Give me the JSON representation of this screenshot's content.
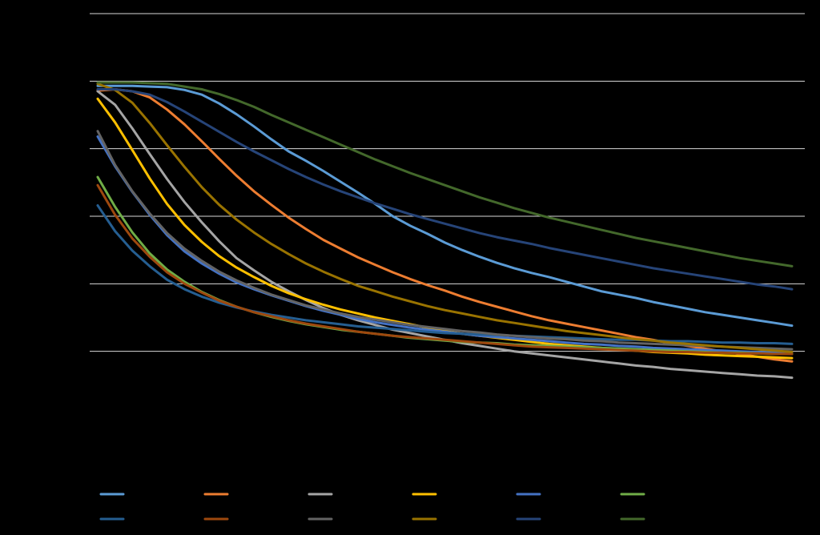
{
  "chart_data": {
    "type": "line",
    "title": "",
    "xlabel": "",
    "ylabel": "",
    "xlim": [
      0,
      20
    ],
    "ylim": [
      0,
      600
    ],
    "yticks": [
      100,
      200,
      300,
      400,
      500,
      600
    ],
    "grid": true,
    "legend": "bottom",
    "background": "#000000",
    "gridline_color": "#d9d9d9",
    "x": [
      0,
      0.5,
      1,
      1.5,
      2,
      2.5,
      3,
      3.5,
      4,
      4.5,
      5,
      5.5,
      6,
      6.5,
      7,
      7.5,
      8,
      8.5,
      9,
      9.5,
      10,
      10.5,
      11,
      11.5,
      12,
      12.5,
      13,
      13.5,
      14,
      14.5,
      15,
      15.5,
      16,
      16.5,
      17,
      17.5,
      18,
      18.5,
      19,
      19.5,
      20
    ],
    "series": [
      {
        "color": "#5b9bd5",
        "values": [
          493,
          493,
          493,
          492,
          491,
          487,
          480,
          467,
          451,
          433,
          414,
          396,
          382,
          367,
          351,
          335,
          318,
          300,
          286,
          274,
          261,
          250,
          240,
          231,
          223,
          216,
          210,
          203,
          196,
          189,
          184,
          179,
          173,
          168,
          163,
          158,
          154,
          150,
          146,
          142,
          138
        ]
      },
      {
        "color": "#ed7d31",
        "values": [
          486,
          488,
          485,
          476,
          458,
          436,
          411,
          385,
          360,
          337,
          317,
          298,
          281,
          265,
          252,
          239,
          228,
          217,
          207,
          198,
          190,
          181,
          173,
          166,
          159,
          152,
          146,
          141,
          136,
          131,
          126,
          121,
          117,
          112,
          108,
          104,
          100,
          96,
          92,
          88,
          85
        ]
      },
      {
        "color": "#a5a5a5",
        "values": [
          485,
          465,
          430,
          392,
          355,
          321,
          291,
          263,
          238,
          220,
          203,
          189,
          176,
          164,
          154,
          146,
          139,
          132,
          127,
          122,
          117,
          112,
          108,
          104,
          100,
          97,
          94,
          91,
          88,
          85,
          82,
          79,
          77,
          74,
          72,
          70,
          68,
          66,
          64,
          63,
          61
        ]
      },
      {
        "color": "#ffc000",
        "values": [
          474,
          439,
          398,
          356,
          318,
          287,
          262,
          241,
          224,
          210,
          197,
          186,
          177,
          169,
          162,
          156,
          150,
          145,
          140,
          135,
          130,
          126,
          123,
          120,
          117,
          114,
          111,
          109,
          107,
          105,
          103,
          101,
          99,
          98,
          97,
          95,
          94,
          93,
          92,
          91,
          90
        ]
      },
      {
        "color": "#4472c4",
        "values": [
          418,
          374,
          336,
          302,
          272,
          248,
          230,
          215,
          202,
          192,
          183,
          175,
          167,
          160,
          154,
          148,
          143,
          139,
          135,
          132,
          129,
          126,
          123,
          121,
          119,
          117,
          115,
          113,
          111,
          110,
          108,
          107,
          105,
          104,
          103,
          102,
          101,
          100,
          99,
          98,
          97
        ]
      },
      {
        "color": "#70ad47",
        "values": [
          358,
          314,
          276,
          245,
          221,
          203,
          188,
          176,
          166,
          158,
          151,
          145,
          140,
          136,
          132,
          129,
          126,
          123,
          120,
          118,
          116,
          114,
          113,
          112,
          110,
          109,
          108,
          107,
          106,
          105,
          104,
          103,
          102,
          101,
          100,
          99,
          98,
          98,
          97,
          96,
          96
        ]
      },
      {
        "color": "#255e91",
        "values": [
          316,
          278,
          249,
          226,
          206,
          192,
          181,
          172,
          165,
          159,
          154,
          150,
          146,
          143,
          140,
          137,
          135,
          133,
          131,
          129,
          127,
          126,
          125,
          124,
          123,
          122,
          121,
          120,
          119,
          118,
          117,
          117,
          116,
          115,
          115,
          114,
          113,
          113,
          112,
          112,
          111
        ]
      },
      {
        "color": "#9e480e",
        "values": [
          346,
          302,
          267,
          240,
          217,
          200,
          187,
          175,
          166,
          158,
          152,
          146,
          141,
          137,
          133,
          129,
          126,
          123,
          121,
          119,
          117,
          115,
          113,
          111,
          109,
          107,
          106,
          105,
          104,
          103,
          102,
          101,
          100,
          99,
          99,
          98,
          98,
          97,
          97,
          96,
          96
        ]
      },
      {
        "color": "#636363",
        "values": [
          426,
          376,
          337,
          304,
          275,
          252,
          234,
          218,
          205,
          194,
          184,
          176,
          168,
          162,
          156,
          151,
          147,
          143,
          139,
          136,
          133,
          130,
          128,
          125,
          123,
          121,
          119,
          118,
          116,
          115,
          113,
          112,
          111,
          110,
          109,
          108,
          107,
          106,
          105,
          104,
          103
        ]
      },
      {
        "color": "#997300",
        "values": [
          496,
          487,
          468,
          438,
          405,
          373,
          343,
          317,
          295,
          276,
          259,
          244,
          230,
          218,
          207,
          197,
          189,
          181,
          174,
          167,
          161,
          156,
          151,
          146,
          142,
          138,
          134,
          130,
          127,
          124,
          121,
          118,
          116,
          113,
          111,
          109,
          107,
          105,
          103,
          101,
          99
        ]
      },
      {
        "color": "#264478",
        "values": [
          488,
          488,
          485,
          480,
          469,
          455,
          440,
          425,
          410,
          396,
          383,
          370,
          358,
          347,
          337,
          328,
          319,
          311,
          303,
          296,
          289,
          282,
          275,
          269,
          264,
          259,
          253,
          248,
          243,
          238,
          233,
          228,
          223,
          219,
          215,
          211,
          207,
          203,
          199,
          196,
          192
        ]
      },
      {
        "color": "#43682b",
        "values": [
          498,
          498,
          498,
          497,
          496,
          492,
          488,
          481,
          472,
          462,
          450,
          439,
          428,
          417,
          406,
          395,
          384,
          374,
          364,
          355,
          346,
          337,
          328,
          320,
          312,
          305,
          298,
          292,
          286,
          280,
          274,
          268,
          263,
          258,
          253,
          248,
          243,
          238,
          234,
          230,
          226
        ]
      }
    ]
  }
}
